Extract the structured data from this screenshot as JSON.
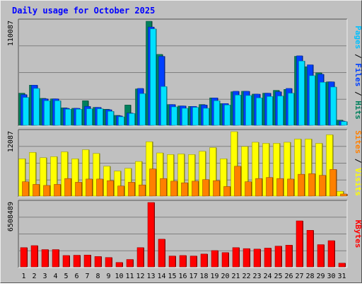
{
  "chart_data": {
    "type": "bar",
    "title": "Daily usage for October 2025",
    "categories": [
      "1",
      "2",
      "3",
      "4",
      "5",
      "6",
      "7",
      "8",
      "9",
      "10",
      "11",
      "12",
      "13",
      "14",
      "15",
      "16",
      "17",
      "18",
      "19",
      "20",
      "21",
      "22",
      "23",
      "24",
      "25",
      "26",
      "27",
      "28",
      "29",
      "30",
      "31"
    ],
    "weekend_days": [
      "4",
      "5",
      "11",
      "12",
      "18",
      "19",
      "25",
      "26"
    ],
    "colors": {
      "hits": "#00805c",
      "files": "#0040ff",
      "pages": "#00e0ff",
      "visits": "#ffff00",
      "sites": "#ff8000",
      "kbytes": "#ff0000",
      "weekday_label": "#000000",
      "weekend_label": "#00805c",
      "title": "#0000ff",
      "separator": "#000000"
    },
    "panels": [
      {
        "id": "top",
        "ymax_label": "110087",
        "ymax": 110087,
        "right_label": [
          {
            "text": "Pages",
            "color": "#00c0ff"
          },
          {
            "text": " / ",
            "color": "#000000"
          },
          {
            "text": "Files",
            "color": "#0040ff"
          },
          {
            "text": " / ",
            "color": "#000000"
          },
          {
            "text": "Hits",
            "color": "#00805c"
          }
        ],
        "series": [
          {
            "name": "Hits",
            "color": "#00805c",
            "values": [
              34000,
              42500,
              28500,
              28000,
              18500,
              18000,
              26000,
              19000,
              17000,
              10500,
              21500,
              38500,
              110087,
              75000,
              22000,
              20500,
              20000,
              22000,
              29000,
              23000,
              35500,
              36000,
              33000,
              34000,
              37000,
              38000,
              73000,
              62000,
              55500,
              46000,
              5500
            ]
          },
          {
            "name": "Files",
            "color": "#0040ff",
            "values": [
              32500,
              42500,
              28000,
              28000,
              18000,
              18000,
              20000,
              19000,
              16500,
              10000,
              13000,
              39000,
              104000,
              73000,
              22000,
              20500,
              20000,
              21500,
              29000,
              23000,
              36000,
              36000,
              33000,
              34000,
              35500,
              39000,
              73500,
              64000,
              54000,
              46000,
              4500
            ]
          },
          {
            "name": "Pages",
            "color": "#00e0ff",
            "values": [
              29500,
              39000,
              26000,
              26000,
              17000,
              17000,
              17500,
              17500,
              14800,
              9000,
              12500,
              33500,
              102000,
              41000,
              19500,
              18000,
              19000,
              18000,
              26000,
              21500,
              32000,
              31500,
              29000,
              30500,
              31000,
              34000,
              68000,
              52500,
              45500,
              40500,
              4000
            ]
          }
        ]
      },
      {
        "id": "middle",
        "ymax_label": "12087",
        "ymax": 12087,
        "right_label": [
          {
            "text": "Sites",
            "color": "#ff8000"
          },
          {
            "text": " / ",
            "color": "#000000"
          },
          {
            "text": "Visits",
            "color": "#ffff00"
          }
        ],
        "series": [
          {
            "name": "Visits",
            "color": "#ffff00",
            "values": [
              7000,
              8200,
              7200,
              7400,
              8300,
              7000,
              8700,
              8000,
              5600,
              4700,
              5200,
              6500,
              10200,
              8100,
              7800,
              7900,
              7800,
              8400,
              9100,
              7000,
              12087,
              9300,
              10100,
              9900,
              9900,
              10100,
              10700,
              10700,
              9900,
              11500,
              900
            ]
          },
          {
            "name": "Sites",
            "color": "#ff8000",
            "values": [
              2700,
              2200,
              2000,
              2200,
              3300,
              2600,
              3200,
              3200,
              2900,
              1900,
              2600,
              2100,
              5100,
              3300,
              2800,
              2500,
              2800,
              3100,
              2900,
              1800,
              5600,
              2700,
              3300,
              3500,
              3300,
              3200,
              4100,
              4200,
              3900,
              5000,
              400
            ]
          }
        ]
      },
      {
        "id": "bottom",
        "ymax_label": "6508489",
        "ymax": 6508489,
        "right_label": [
          {
            "text": "KBytes",
            "color": "#ff0000"
          }
        ],
        "series": [
          {
            "name": "KBytes",
            "color": "#ff0000",
            "values": [
              1950000,
              2150000,
              1750000,
              1750000,
              1150000,
              1180000,
              1200000,
              1050000,
              950000,
              450000,
              750000,
              1950000,
              6508489,
              2800000,
              1100000,
              1150000,
              1100000,
              1300000,
              1650000,
              1450000,
              1950000,
              1850000,
              1800000,
              1900000,
              2100000,
              2200000,
              4650000,
              3700000,
              2250000,
              2650000,
              380000
            ]
          }
        ]
      }
    ]
  }
}
